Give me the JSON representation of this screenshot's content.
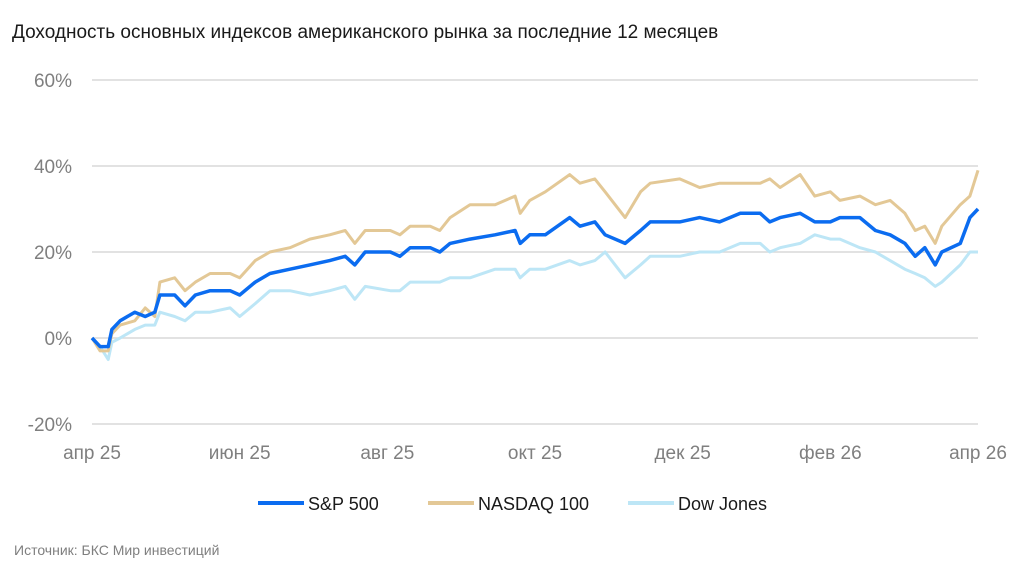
{
  "chart_data": {
    "type": "line",
    "title": "Доходность основных индексов американского рынка за последние 12 месяцев",
    "xlabel": "",
    "ylabel": "",
    "ylim": [
      -20,
      60
    ],
    "xlim": [
      0,
      12
    ],
    "grid": true,
    "legend_position": "bottom",
    "y_ticks": [
      {
        "value": 60,
        "label": "60%"
      },
      {
        "value": 40,
        "label": "40%"
      },
      {
        "value": 20,
        "label": "20%"
      },
      {
        "value": 0,
        "label": "0%"
      },
      {
        "value": -20,
        "label": "-20%"
      }
    ],
    "x_ticks": [
      {
        "value": 0,
        "label": "апр 25"
      },
      {
        "value": 2,
        "label": "июн 25"
      },
      {
        "value": 4,
        "label": "авг 25"
      },
      {
        "value": 6,
        "label": "окт 25"
      },
      {
        "value": 8,
        "label": "дек 25"
      },
      {
        "value": 10,
        "label": "фев 26"
      },
      {
        "value": 12,
        "label": "апр 26"
      }
    ],
    "x": [
      0,
      0.11,
      0.22,
      0.27,
      0.38,
      0.58,
      0.72,
      0.85,
      0.92,
      1.12,
      1.26,
      1.4,
      1.6,
      1.87,
      2.0,
      2.21,
      2.41,
      2.68,
      2.95,
      3.22,
      3.43,
      3.56,
      3.7,
      4.04,
      4.17,
      4.31,
      4.58,
      4.71,
      4.85,
      5.12,
      5.46,
      5.73,
      5.8,
      5.93,
      6.14,
      6.47,
      6.61,
      6.81,
      6.95,
      7.22,
      7.43,
      7.56,
      7.96,
      8.23,
      8.5,
      8.78,
      9.05,
      9.18,
      9.32,
      9.59,
      9.79,
      10.0,
      10.13,
      10.4,
      10.61,
      10.81,
      11.01,
      11.15,
      11.28,
      11.42,
      11.51,
      11.76,
      11.89,
      12.0
    ],
    "series": [
      {
        "name": "S&P 500",
        "color": "#0b6cf0",
        "values": [
          0,
          -2,
          -2,
          2,
          4,
          6,
          5,
          6,
          10,
          10,
          7.5,
          10,
          11,
          11,
          10,
          13,
          15,
          16,
          17,
          18,
          19,
          17,
          20,
          20,
          19,
          21,
          21,
          20,
          22,
          23,
          24,
          25,
          22,
          24,
          24,
          28,
          26,
          27,
          24,
          22,
          25,
          27,
          27,
          28,
          27,
          29,
          29,
          27,
          28,
          29,
          27,
          27,
          28,
          28,
          25,
          24,
          22,
          19,
          21,
          17,
          20,
          22,
          28,
          30
        ]
      },
      {
        "name": "NASDAQ 100",
        "color": "#e3c896",
        "values": [
          0,
          -3,
          -3,
          1,
          3,
          4,
          7,
          5,
          13,
          14,
          11,
          13,
          15,
          15,
          14,
          18,
          20,
          21,
          23,
          24,
          25,
          22,
          25,
          25,
          24,
          26,
          26,
          25,
          28,
          31,
          31,
          33,
          29,
          32,
          34,
          38,
          36,
          37,
          34,
          28,
          34,
          36,
          37,
          35,
          36,
          36,
          36,
          37,
          35,
          38,
          33,
          34,
          32,
          33,
          31,
          32,
          29,
          25,
          26,
          22,
          26,
          31,
          33,
          39
        ]
      },
      {
        "name": "Dow Jones",
        "color": "#bde6f6",
        "values": [
          0,
          -2,
          -5,
          -1,
          0,
          2,
          3,
          3,
          6,
          5,
          4,
          6,
          6,
          7,
          5,
          8,
          11,
          11,
          10,
          11,
          12,
          9,
          12,
          11,
          11,
          13,
          13,
          13,
          14,
          14,
          16,
          16,
          14,
          16,
          16,
          18,
          17,
          18,
          20,
          14,
          17,
          19,
          19,
          20,
          20,
          22,
          22,
          20,
          21,
          22,
          24,
          23,
          23,
          21,
          20,
          18,
          16,
          15,
          14,
          12,
          13,
          17,
          20,
          20
        ]
      }
    ]
  },
  "source": "Источник: БКС Мир инвестиций"
}
